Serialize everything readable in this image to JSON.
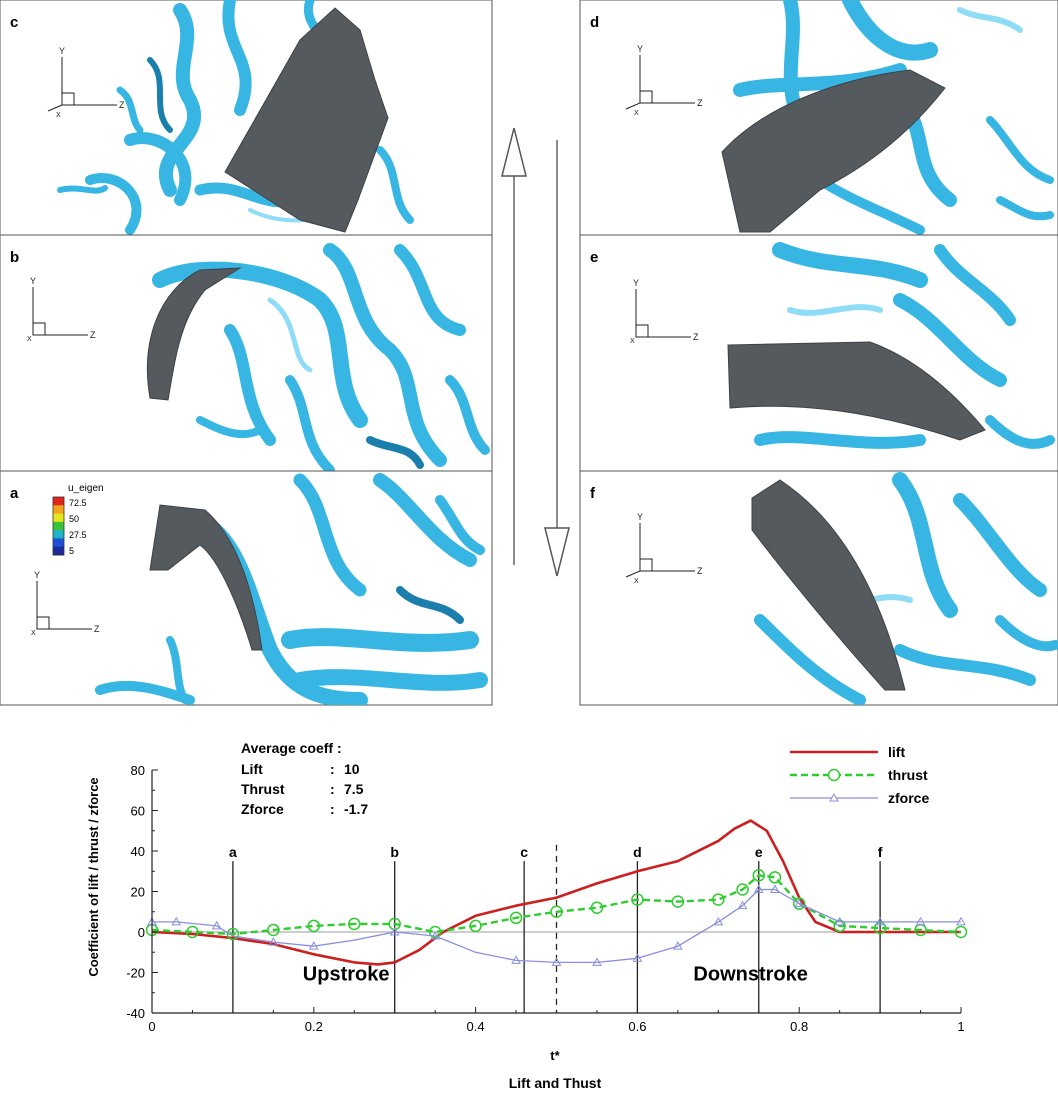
{
  "panels": [
    {
      "id": "c",
      "label": "c",
      "axes": "3d",
      "ax": {
        "v": "Y",
        "h": "Z",
        "x": "X"
      }
    },
    {
      "id": "b",
      "label": "b",
      "axes": "2d",
      "ax": {
        "v": "Y",
        "h": "Z",
        "x": "X"
      }
    },
    {
      "id": "a",
      "label": "a",
      "axes": "2d",
      "ax": {
        "v": "Y",
        "h": "Z",
        "x": "X"
      }
    },
    {
      "id": "d",
      "label": "d",
      "axes": "3d",
      "ax": {
        "v": "Y",
        "h": "Z",
        "x": "X"
      }
    },
    {
      "id": "e",
      "label": "e",
      "axes": "2d",
      "ax": {
        "v": "Y",
        "h": "Z",
        "x": "X"
      }
    },
    {
      "id": "f",
      "label": "f",
      "axes": "3d",
      "ax": {
        "v": "Y",
        "h": "Z",
        "x": "X"
      }
    }
  ],
  "colorbar": {
    "title": "u_eigen",
    "ticks": [
      "72.5",
      "50",
      "27.5",
      "5"
    ],
    "colors": [
      "#e0261e",
      "#f2a51c",
      "#e6e61e",
      "#39c23a",
      "#1fb4c8",
      "#1f4fd6",
      "#1a2a9a"
    ]
  },
  "colors": {
    "vortex": "#37b6e3",
    "vortex_dark": "#1b7fae",
    "vortex_light": "#8fdcf6",
    "wing": "#555a5f",
    "lift": "#cc1f1f",
    "thrust": "#2fcc2f",
    "zforce": "#8a8ee0"
  },
  "averages": {
    "heading": "Average coeff :",
    "rows": [
      {
        "name": "Lift",
        "sep": ":",
        "value": "10"
      },
      {
        "name": "Thrust",
        "sep": ":",
        "value": "7.5"
      },
      {
        "name": "Zforce",
        "sep": ":",
        "value": "-1.7"
      }
    ]
  },
  "chart_data": {
    "type": "line",
    "ylabel": "Coefficient of lift / thrust / zforce",
    "xlabel": "t*",
    "caption": "Lift and Thust",
    "xlim": [
      0,
      1
    ],
    "ylim": [
      -40,
      80
    ],
    "xticks": [
      0,
      0.2,
      0.4,
      0.6,
      0.8,
      1
    ],
    "xtick_labels": [
      "0",
      "0.2",
      "0.4",
      "0.6",
      "0.8",
      "1"
    ],
    "yticks": [
      -40,
      -20,
      0,
      20,
      40,
      60,
      80
    ],
    "ytick_labels": [
      "-40",
      "-20",
      "0",
      "20",
      "40",
      "60",
      "80"
    ],
    "legend_position": "top-right",
    "phase_lines": [
      {
        "label": "a",
        "x": 0.1
      },
      {
        "label": "b",
        "x": 0.3
      },
      {
        "label": "c",
        "x": 0.46
      },
      {
        "label": "d",
        "x": 0.6
      },
      {
        "label": "e",
        "x": 0.75
      },
      {
        "label": "f",
        "x": 0.9
      }
    ],
    "midline_x": 0.5,
    "annotations": [
      {
        "text": "Upstroke",
        "x": 0.24,
        "y": -24
      },
      {
        "text": "Downstroke",
        "x": 0.74,
        "y": -24
      }
    ],
    "series": [
      {
        "name": "lift",
        "color": "#cc1f1f",
        "style": "solid",
        "marker": "none",
        "x": [
          0,
          0.05,
          0.1,
          0.15,
          0.2,
          0.25,
          0.28,
          0.3,
          0.33,
          0.36,
          0.4,
          0.45,
          0.5,
          0.55,
          0.6,
          0.65,
          0.7,
          0.72,
          0.74,
          0.76,
          0.78,
          0.8,
          0.82,
          0.85,
          0.9,
          1.0
        ],
        "y": [
          0,
          -1,
          -3,
          -6,
          -11,
          -15,
          -16,
          -15,
          -9,
          0,
          8,
          13,
          17,
          24,
          30,
          35,
          45,
          51,
          55,
          50,
          35,
          17,
          5,
          0,
          0,
          0
        ]
      },
      {
        "name": "thrust",
        "color": "#2fcc2f",
        "style": "dashed",
        "marker": "circle",
        "x": [
          0,
          0.05,
          0.1,
          0.15,
          0.2,
          0.25,
          0.3,
          0.35,
          0.4,
          0.45,
          0.5,
          0.55,
          0.6,
          0.65,
          0.7,
          0.73,
          0.75,
          0.77,
          0.8,
          0.85,
          0.9,
          0.95,
          1.0
        ],
        "y": [
          1,
          0,
          -1,
          1,
          3,
          4,
          4,
          0,
          3,
          7,
          10,
          12,
          16,
          15,
          16,
          21,
          28,
          27,
          14,
          3,
          2,
          1,
          0
        ],
        "markers_x": [
          0,
          0.05,
          0.1,
          0.15,
          0.2,
          0.25,
          0.3,
          0.35,
          0.4,
          0.45,
          0.5,
          0.55,
          0.6,
          0.65,
          0.7,
          0.73,
          0.75,
          0.77,
          0.8,
          0.85,
          0.9,
          0.95,
          1.0
        ]
      },
      {
        "name": "zforce",
        "color": "#8a8ee0",
        "style": "solid",
        "marker": "triangle",
        "x": [
          0,
          0.03,
          0.08,
          0.1,
          0.15,
          0.2,
          0.25,
          0.3,
          0.35,
          0.4,
          0.45,
          0.5,
          0.55,
          0.6,
          0.65,
          0.7,
          0.73,
          0.75,
          0.77,
          0.8,
          0.85,
          0.9,
          0.95,
          1.0
        ],
        "y": [
          5,
          5,
          3,
          -2,
          -5,
          -7,
          -4,
          0,
          -2,
          -10,
          -14,
          -15,
          -15,
          -13,
          -7,
          5,
          13,
          21,
          21,
          14,
          5,
          5,
          5,
          5
        ],
        "markers_x": [
          0,
          0.03,
          0.08,
          0.15,
          0.2,
          0.3,
          0.35,
          0.45,
          0.5,
          0.55,
          0.6,
          0.65,
          0.7,
          0.73,
          0.75,
          0.77,
          0.8,
          0.85,
          0.9,
          0.95,
          1.0
        ]
      }
    ]
  }
}
